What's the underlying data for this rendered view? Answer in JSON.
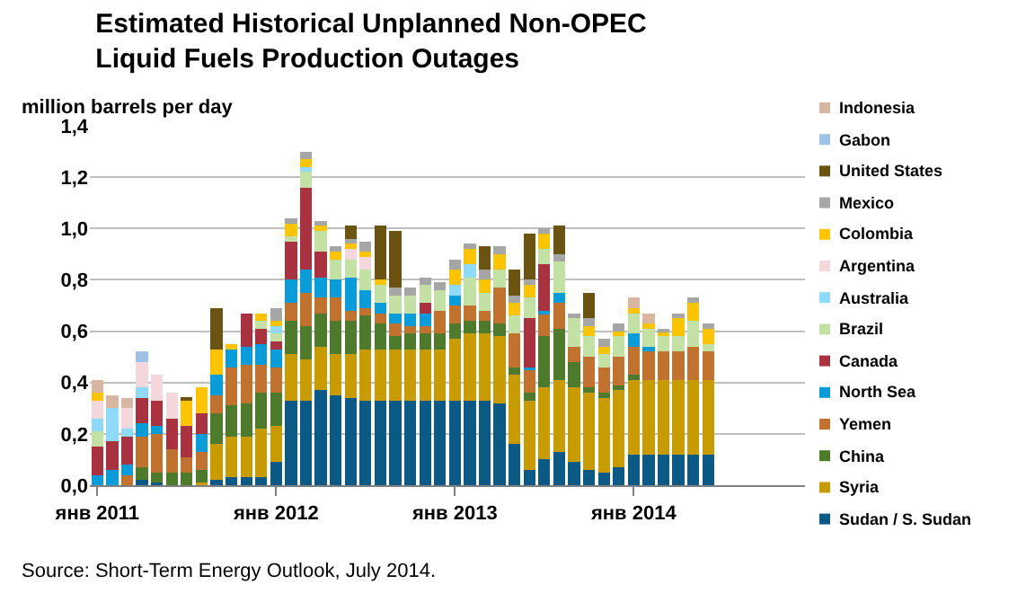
{
  "chart_data": {
    "type": "bar",
    "stacked": true,
    "title": "Estimated Historical Unplanned Non-OPEC\nLiquid Fuels Production Outages",
    "ylabel": "million barrels per day",
    "annotations": [
      "Source: Short-Term Energy Outlook, July 2014."
    ],
    "categories": [
      "янв 2011",
      null,
      null,
      null,
      null,
      null,
      null,
      null,
      null,
      null,
      null,
      null,
      "янв 2012",
      null,
      null,
      null,
      null,
      null,
      null,
      null,
      null,
      null,
      null,
      null,
      "янв 2013",
      null,
      null,
      null,
      null,
      null,
      null,
      null,
      null,
      null,
      null,
      null,
      "янв 2014",
      null,
      null,
      null,
      null,
      null,
      null,
      null,
      null,
      null,
      null,
      null
    ],
    "ylim": [
      0,
      1.4
    ],
    "yticks": [
      {
        "value": 0,
        "label": "0,0"
      },
      {
        "value": 0.2,
        "label": "0,2"
      },
      {
        "value": 0.4,
        "label": "0,4"
      },
      {
        "value": 0.6,
        "label": "0,6"
      },
      {
        "value": 0.8,
        "label": "0,8"
      },
      {
        "value": 1.0,
        "label": "1,0"
      },
      {
        "value": 1.2,
        "label": "1,2"
      },
      {
        "value": 1.4,
        "label": "1,4"
      }
    ],
    "grid": "y",
    "legend": "right",
    "series": [
      {
        "name": "Sudan / S. Sudan",
        "color": "#0b5a85",
        "values": [
          0,
          0,
          0,
          0.02,
          0.01,
          0,
          0,
          0,
          0.02,
          0.03,
          0.03,
          0.03,
          0.09,
          0.33,
          0.33,
          0.37,
          0.35,
          0.34,
          0.33,
          0.33,
          0.33,
          0.33,
          0.33,
          0.33,
          0.33,
          0.33,
          0.33,
          0.32,
          0.16,
          0.06,
          0.1,
          0.13,
          0.09,
          0.06,
          0.05,
          0.07,
          0.12,
          0.12,
          0.12,
          0.12,
          0.12,
          0.12,
          null,
          null,
          null,
          null,
          null,
          null
        ]
      },
      {
        "name": "Syria",
        "color": "#c89c00",
        "values": [
          0,
          0,
          0,
          0,
          0,
          0,
          0,
          0.01,
          0.14,
          0.16,
          0.16,
          0.19,
          0.14,
          0.18,
          0.16,
          0.17,
          0.16,
          0.17,
          0.2,
          0.2,
          0.2,
          0.2,
          0.2,
          0.2,
          0.24,
          0.26,
          0.26,
          0.26,
          0.27,
          0.27,
          0.28,
          0.28,
          0.29,
          0.3,
          0.29,
          0.3,
          0.29,
          0.29,
          0.29,
          0.29,
          0.29,
          0.29,
          null,
          null,
          null,
          null,
          null,
          null
        ]
      },
      {
        "name": "China",
        "color": "#4e7a2c",
        "values": [
          0,
          0,
          0,
          0.05,
          0.04,
          0.05,
          0.05,
          0.05,
          0.12,
          0.12,
          0.13,
          0.14,
          0.13,
          0.13,
          0.13,
          0.13,
          0.13,
          0.13,
          0.13,
          0.1,
          0.05,
          0.06,
          0.06,
          0.06,
          0.06,
          0.05,
          0.05,
          0.05,
          0.03,
          0.03,
          0.2,
          0.2,
          0.1,
          0.02,
          0.02,
          0.02,
          0.02,
          0,
          0,
          0,
          0,
          0,
          null,
          null,
          null,
          null,
          null,
          null
        ]
      },
      {
        "name": "Yemen",
        "color": "#c2722f",
        "values": [
          0,
          0,
          0.04,
          0.12,
          0.15,
          0.09,
          0.06,
          0.07,
          0.07,
          0.15,
          0.15,
          0.11,
          0.1,
          0.07,
          0.13,
          0.06,
          0.09,
          0.04,
          0.03,
          0.04,
          0.05,
          0.03,
          0.03,
          0.09,
          0.07,
          0.06,
          0.04,
          0.14,
          0.13,
          0.09,
          0.09,
          0.1,
          0.06,
          0.12,
          0.1,
          0.11,
          0.11,
          0.11,
          0.11,
          0.11,
          0.13,
          0.11,
          null,
          null,
          null,
          null,
          null,
          null
        ]
      },
      {
        "name": "North Sea",
        "color": "#0a9bd9",
        "values": [
          0.04,
          0.06,
          0.04,
          0.05,
          0.03,
          0,
          0,
          0.07,
          0.08,
          0.07,
          0.07,
          0.08,
          0.07,
          0.09,
          0.09,
          0.08,
          0.07,
          0.13,
          0.07,
          0.04,
          0.04,
          0.05,
          0.05,
          0,
          0.04,
          0,
          0,
          0,
          0,
          0.01,
          0.01,
          0.04,
          0,
          0,
          0,
          0,
          0.05,
          0.02,
          0,
          0,
          0,
          0,
          null,
          null,
          null,
          null,
          null,
          null
        ]
      },
      {
        "name": "Canada",
        "color": "#a8323f",
        "values": [
          0.11,
          0.11,
          0.11,
          0.1,
          0.1,
          0.12,
          0.12,
          0.08,
          0,
          0,
          0.13,
          0.06,
          0.03,
          0.15,
          0.32,
          0.1,
          0,
          0,
          0,
          0,
          0,
          0,
          0.04,
          0,
          0,
          0,
          0,
          0,
          0,
          0.19,
          0.18,
          0,
          0,
          0,
          0,
          0,
          0,
          0,
          0,
          0,
          0,
          0,
          null,
          null,
          null,
          null,
          null,
          null
        ]
      },
      {
        "name": "Brazil",
        "color": "#c4e1a5",
        "values": [
          0.06,
          0,
          0,
          0,
          0,
          0,
          0,
          0,
          0,
          0,
          0,
          0.03,
          0.03,
          0.02,
          0.06,
          0.08,
          0.08,
          0.07,
          0.08,
          0.07,
          0.07,
          0.07,
          0.07,
          0.08,
          0,
          0.11,
          0.07,
          0.07,
          0.07,
          0.08,
          0.06,
          0.12,
          0.11,
          0.08,
          0.05,
          0.08,
          0.08,
          0.07,
          0.06,
          0.06,
          0.1,
          0.03,
          null,
          null,
          null,
          null,
          null,
          null
        ]
      },
      {
        "name": "Australia",
        "color": "#8fd9f9",
        "values": [
          0.05,
          0.13,
          0.03,
          0.04,
          0,
          0,
          0,
          0,
          0,
          0,
          0,
          0,
          0.03,
          0,
          0.02,
          0,
          0,
          0,
          0,
          0,
          0,
          0,
          0,
          0,
          0.04,
          0.05,
          0,
          0,
          0,
          0,
          0,
          0,
          0,
          0,
          0,
          0,
          0,
          0,
          0,
          0,
          0,
          0,
          null,
          null,
          null,
          null,
          null,
          null
        ]
      },
      {
        "name": "Argentina",
        "color": "#f3d7dd",
        "values": [
          0.07,
          0,
          0.08,
          0.1,
          0.1,
          0.1,
          0,
          0,
          0,
          0,
          0,
          0,
          0,
          0,
          0,
          0,
          0,
          0.04,
          0.05,
          0,
          0,
          0,
          0,
          0,
          0,
          0,
          0,
          0,
          0,
          0,
          0,
          0,
          0,
          0,
          0,
          0,
          0,
          0,
          0,
          0,
          0,
          0,
          null,
          null,
          null,
          null,
          null,
          null
        ]
      },
      {
        "name": "Colombia",
        "color": "#ffc400",
        "values": [
          0.03,
          0,
          0,
          0,
          0,
          0,
          0.1,
          0.1,
          0.1,
          0.02,
          0,
          0.03,
          0.02,
          0.05,
          0.03,
          0.02,
          0.03,
          0.02,
          0.02,
          0.02,
          0,
          0,
          0,
          0,
          0.06,
          0.06,
          0.05,
          0.06,
          0.05,
          0.05,
          0.06,
          0,
          0,
          0.04,
          0.03,
          0.02,
          0.02,
          0.02,
          0.02,
          0.07,
          0.07,
          0.06,
          null,
          null,
          null,
          null,
          null,
          null
        ]
      },
      {
        "name": "Mexico",
        "color": "#a6a6a6",
        "values": [
          0,
          0,
          0,
          0,
          0,
          0,
          0,
          0,
          0,
          0,
          0,
          0,
          0.05,
          0.02,
          0.03,
          0.02,
          0.02,
          0.02,
          0.04,
          0,
          0.03,
          0.03,
          0.03,
          0.03,
          0.04,
          0.02,
          0.04,
          0.03,
          0.03,
          0.02,
          0.02,
          0.03,
          0.02,
          0.03,
          0.03,
          0.03,
          0,
          0,
          0.01,
          0.02,
          0.02,
          0.02,
          null,
          null,
          null,
          null,
          null,
          null
        ]
      },
      {
        "name": "United States",
        "color": "#6b5311",
        "values": [
          0,
          0,
          0,
          0,
          0,
          0,
          0.01,
          0,
          0.16,
          0,
          0,
          0,
          0,
          0,
          0,
          0,
          0,
          0.05,
          0,
          0.21,
          0.22,
          0,
          0,
          0,
          0,
          0,
          0.09,
          0,
          0.1,
          0.18,
          0,
          0.11,
          0,
          0.1,
          0,
          0,
          0,
          0,
          0,
          0,
          0,
          0,
          null,
          null,
          null,
          null,
          null,
          null
        ]
      },
      {
        "name": "Gabon",
        "color": "#9dc3e7",
        "values": [
          0,
          0,
          0,
          0.04,
          0,
          0,
          0,
          0,
          0,
          0,
          0,
          0,
          0,
          0,
          0,
          0,
          0,
          0,
          0,
          0,
          0,
          0,
          0,
          0,
          0,
          0,
          0,
          0,
          0,
          0,
          0,
          0,
          0,
          0,
          0,
          0,
          0,
          0,
          0,
          0,
          0,
          0,
          null,
          null,
          null,
          null,
          null,
          null
        ]
      },
      {
        "name": "Indonesia",
        "color": "#d9b6a1",
        "values": [
          0.05,
          0.05,
          0.04,
          0,
          0,
          0,
          0,
          0,
          0,
          0,
          0,
          0,
          0,
          0,
          0,
          0,
          0,
          0,
          0,
          0,
          0,
          0,
          0,
          0,
          0,
          0,
          0,
          0,
          0,
          0,
          0,
          0,
          0,
          0,
          0,
          0,
          0.04,
          0.04,
          0,
          0,
          0,
          0,
          null,
          null,
          null,
          null,
          null,
          null
        ]
      }
    ]
  }
}
